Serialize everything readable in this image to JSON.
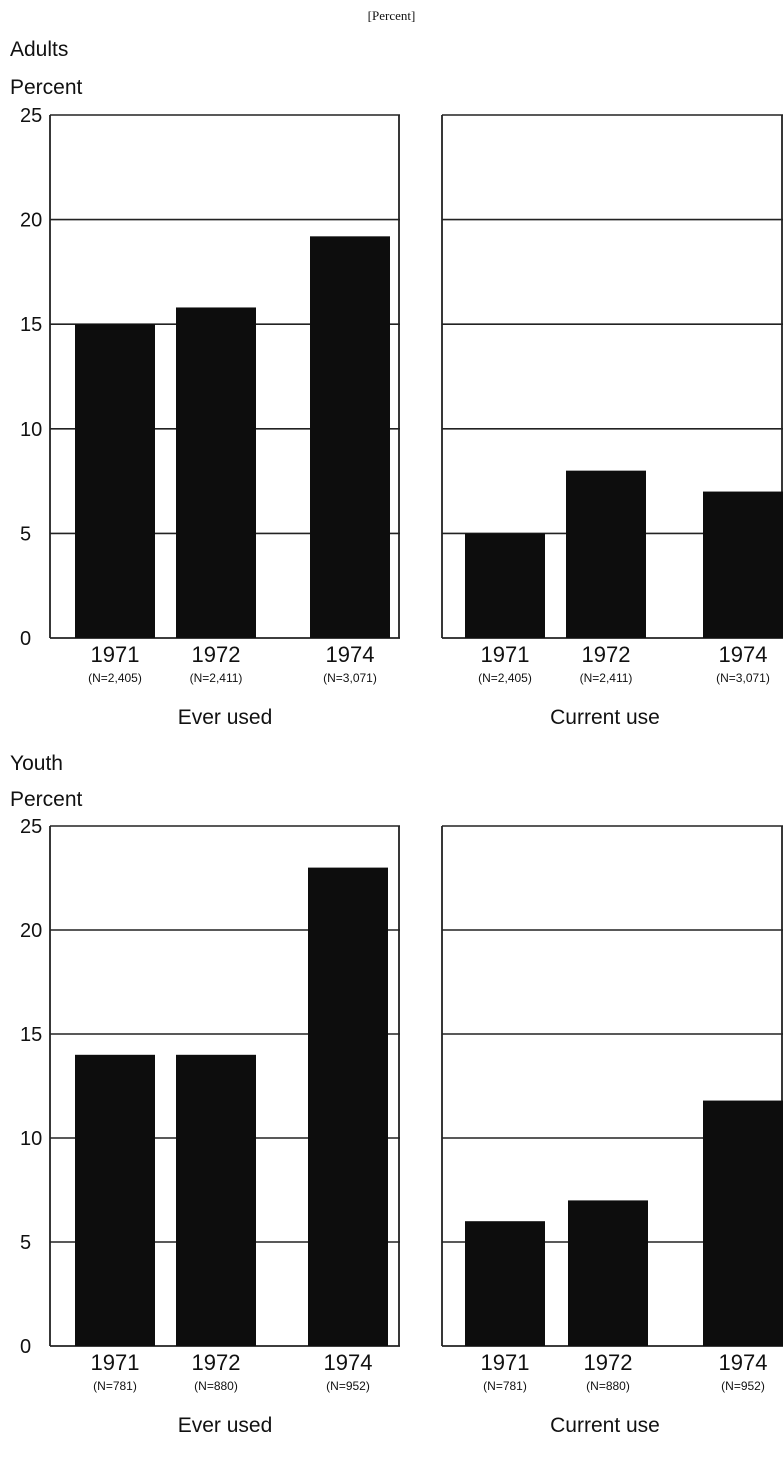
{
  "header_note": "[Percent]",
  "groups": [
    {
      "label": "Adults",
      "ylabel": "Percent"
    },
    {
      "label": "Youth",
      "ylabel": "Percent"
    }
  ],
  "chart_data": [
    {
      "type": "bar",
      "group": "Adults",
      "title": "Ever used",
      "ylabel": "Percent",
      "ylim": [
        0,
        25
      ],
      "yticks": [
        0,
        5,
        10,
        15,
        20,
        25
      ],
      "grid": true,
      "categories": [
        "1971",
        "1972",
        "1974"
      ],
      "sample_sizes": [
        "(N=2,405)",
        "(N=2,411)",
        "(N=3,071)"
      ],
      "values": [
        15,
        15.8,
        19.2
      ],
      "bar_color": "#0d0d0d"
    },
    {
      "type": "bar",
      "group": "Adults",
      "title": "Current use",
      "ylabel": "Percent",
      "ylim": [
        0,
        25
      ],
      "yticks": [
        0,
        5,
        10,
        15,
        20,
        25
      ],
      "grid": true,
      "categories": [
        "1971",
        "1972",
        "1974"
      ],
      "sample_sizes": [
        "(N=2,405)",
        "(N=2,411)",
        "(N=3,071)"
      ],
      "values": [
        5,
        8,
        7
      ],
      "bar_color": "#0d0d0d"
    },
    {
      "type": "bar",
      "group": "Youth",
      "title": "Ever used",
      "ylabel": "Percent",
      "ylim": [
        0,
        25
      ],
      "yticks": [
        0,
        5,
        10,
        15,
        20,
        25
      ],
      "grid": true,
      "categories": [
        "1971",
        "1972",
        "1974"
      ],
      "sample_sizes": [
        "(N=781)",
        "(N=880)",
        "(N=952)"
      ],
      "values": [
        14,
        14,
        23
      ],
      "bar_color": "#0d0d0d"
    },
    {
      "type": "bar",
      "group": "Youth",
      "title": "Current use",
      "ylabel": "Percent",
      "ylim": [
        0,
        25
      ],
      "yticks": [
        0,
        5,
        10,
        15,
        20,
        25
      ],
      "grid": true,
      "categories": [
        "1971",
        "1972",
        "1974"
      ],
      "sample_sizes": [
        "(N=781)",
        "(N=880)",
        "(N=952)"
      ],
      "values": [
        6,
        7,
        11.8
      ],
      "bar_color": "#0d0d0d"
    }
  ]
}
